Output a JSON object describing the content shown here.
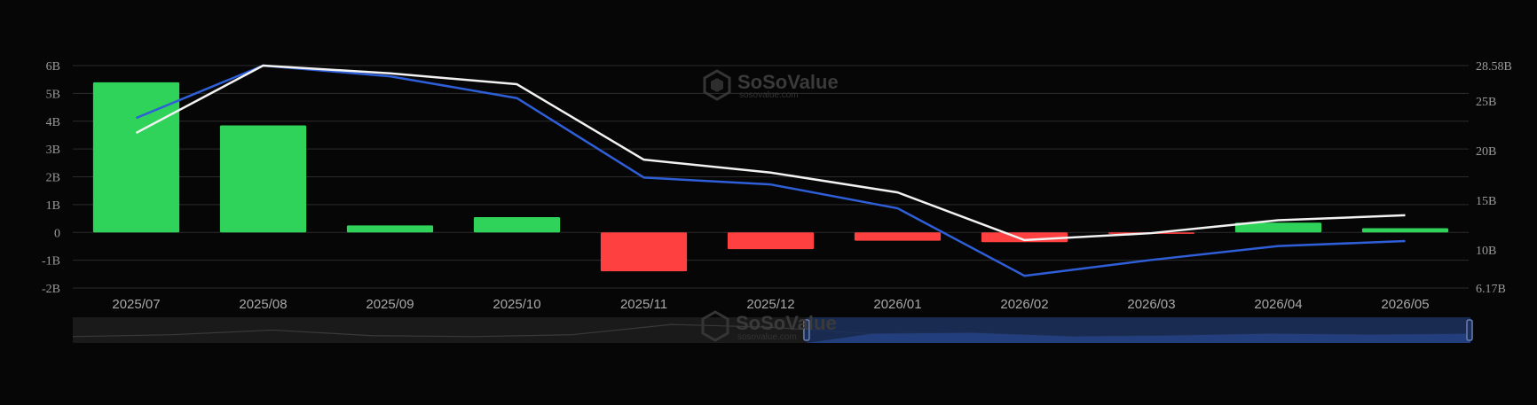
{
  "watermark": {
    "brand": "SoSoValue",
    "sub": "sosovalue.com"
  },
  "colors": {
    "background": "#060606",
    "grid": "#2b2b2b",
    "bar_positive": "#2fd35a",
    "bar_negative": "#ff4040",
    "line_blue": "#2f5fd8",
    "line_white": "#f2f2f2",
    "slider_bg": "#1a1a1a",
    "slider_selected": "#1b2f5c"
  },
  "chart_data": {
    "type": "bar",
    "categories": [
      "2025/07",
      "2025/08",
      "2025/09",
      "2025/10",
      "2025/11",
      "2025/12",
      "2026/01",
      "2026/02",
      "2026/03",
      "2026/04",
      "2026/05"
    ],
    "y_left": {
      "ticks": [
        -2,
        -1,
        0,
        1,
        2,
        3,
        4,
        5,
        6
      ],
      "tick_labels": [
        "-2B",
        "-1B",
        "0",
        "1B",
        "2B",
        "3B",
        "4B",
        "5B",
        "6B"
      ],
      "ylim": [
        -2,
        6
      ]
    },
    "y_right": {
      "ticks": [
        6.17,
        10,
        15,
        20,
        25,
        28.58
      ],
      "tick_labels": [
        "6.17B",
        "10B",
        "15B",
        "20B",
        "25B",
        "28.58B"
      ],
      "ylim": [
        6.17,
        28.58
      ]
    },
    "series": [
      {
        "kind": "bar",
        "axis": "left",
        "values": [
          5.4,
          3.85,
          0.25,
          0.55,
          -1.4,
          -0.6,
          -0.3,
          -0.35,
          -0.05,
          0.35,
          0.15
        ]
      },
      {
        "kind": "line",
        "axis": "right",
        "color": "#2f5fd8",
        "values": [
          23.3,
          28.58,
          27.5,
          25.3,
          17.3,
          16.6,
          14.2,
          7.4,
          9.0,
          10.4,
          10.9
        ]
      },
      {
        "kind": "line",
        "axis": "right",
        "color": "#f2f2f2",
        "values": [
          21.8,
          28.58,
          27.8,
          26.7,
          19.1,
          17.8,
          15.8,
          11.0,
          11.7,
          13.0,
          13.5
        ]
      }
    ],
    "grid": true,
    "legend": "none"
  },
  "slider": {
    "selected_start_fraction": 0.525,
    "selected_end_fraction": 1.0,
    "preview_values": [
      0.2,
      0.3,
      0.55,
      0.25,
      0.2,
      0.3,
      0.85,
      0.7,
      0.35,
      0.4,
      0.2,
      0.25,
      0.35,
      0.3,
      0.35
    ]
  }
}
